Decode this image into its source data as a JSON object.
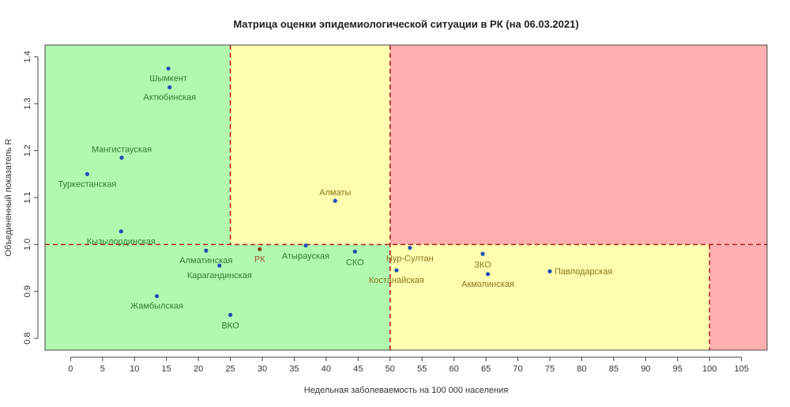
{
  "chart_data": {
    "type": "scatter",
    "title": "Матрица оценки эпидемиологической ситуации в РК (на 06.03.2021)",
    "xlabel": "Недельная заболеваемость на 100 000 населения",
    "ylabel": "Объединенный показатель R",
    "xlim": [
      -4,
      109
    ],
    "ylim": [
      0.775,
      1.425
    ],
    "xticks": [
      0,
      5,
      10,
      15,
      20,
      25,
      30,
      35,
      40,
      45,
      50,
      55,
      60,
      65,
      70,
      75,
      80,
      85,
      90,
      95,
      100,
      105
    ],
    "yticks": [
      0.8,
      0.9,
      1.0,
      1.1,
      1.2,
      1.3,
      1.4
    ],
    "ytick_labels": [
      "0.8",
      "0.9",
      "1.0",
      "1.1",
      "1.2",
      "1.3",
      "1.4"
    ],
    "grid": false,
    "zones": [
      {
        "x": [
          -4,
          25
        ],
        "y": [
          1.0,
          1.425
        ],
        "color": "#b2f9b0"
      },
      {
        "x": [
          -4,
          50
        ],
        "y": [
          0.775,
          1.0
        ],
        "color": "#b2f9b0"
      },
      {
        "x": [
          25,
          50
        ],
        "y": [
          1.0,
          1.425
        ],
        "color": "#ffffb0"
      },
      {
        "x": [
          50,
          100
        ],
        "y": [
          0.775,
          1.0
        ],
        "color": "#ffffb0"
      },
      {
        "x": [
          50,
          109
        ],
        "y": [
          1.0,
          1.425
        ],
        "color": "#ffb0b0"
      },
      {
        "x": [
          100,
          109
        ],
        "y": [
          0.775,
          1.0
        ],
        "color": "#ffb0b0"
      }
    ],
    "threshold_lines": [
      {
        "axis": "x",
        "value": 25,
        "y": [
          1.0,
          1.425
        ]
      },
      {
        "axis": "x",
        "value": 50,
        "y": [
          0.775,
          1.425
        ]
      },
      {
        "axis": "x",
        "value": 100,
        "y": [
          0.775,
          1.0
        ]
      },
      {
        "axis": "y",
        "value": 1.0,
        "x": [
          -4,
          109
        ]
      }
    ],
    "threshold_color": "#b22222",
    "point_color": "#1f4fb4",
    "label_color_green": "#2e7d32",
    "label_color_yellow": "#8a7318",
    "label_color_rk": "#a0522d",
    "points": [
      {
        "label": "Шымкент",
        "x": 15.3,
        "y": 1.375,
        "zone": "green"
      },
      {
        "label": "Актюбинская",
        "x": 15.5,
        "y": 1.335,
        "zone": "green"
      },
      {
        "label": "Мангистауская",
        "x": 8.0,
        "y": 1.185,
        "zone": "green"
      },
      {
        "label": "Туркестанская",
        "x": 2.6,
        "y": 1.15,
        "zone": "green"
      },
      {
        "label": "Кызылординская",
        "x": 7.9,
        "y": 1.028,
        "zone": "green"
      },
      {
        "label": "Алматинская",
        "x": 21.2,
        "y": 0.987,
        "zone": "green"
      },
      {
        "label": "Карагандинская",
        "x": 23.3,
        "y": 0.955,
        "zone": "green"
      },
      {
        "label": "Жамбылская",
        "x": 13.5,
        "y": 0.89,
        "zone": "green"
      },
      {
        "label": "ВКО",
        "x": 25.0,
        "y": 0.85,
        "zone": "green"
      },
      {
        "label": "РК",
        "x": 29.6,
        "y": 0.99,
        "zone": "rk"
      },
      {
        "label": "Атырауская",
        "x": 36.8,
        "y": 0.998,
        "zone": "green"
      },
      {
        "label": "СКО",
        "x": 44.5,
        "y": 0.985,
        "zone": "green"
      },
      {
        "label": "Алматы",
        "x": 41.4,
        "y": 1.093,
        "zone": "yellow"
      },
      {
        "label": "Нур-Султан",
        "x": 53.1,
        "y": 0.993,
        "zone": "yellow"
      },
      {
        "label": "Костанайская",
        "x": 51.0,
        "y": 0.945,
        "zone": "yellow"
      },
      {
        "label": "ЗКО",
        "x": 64.5,
        "y": 0.98,
        "zone": "yellow"
      },
      {
        "label": "Акмолинская",
        "x": 65.3,
        "y": 0.937,
        "zone": "yellow"
      },
      {
        "label": "Павлодарская",
        "x": 75.0,
        "y": 0.943,
        "zone": "yellow"
      }
    ]
  }
}
